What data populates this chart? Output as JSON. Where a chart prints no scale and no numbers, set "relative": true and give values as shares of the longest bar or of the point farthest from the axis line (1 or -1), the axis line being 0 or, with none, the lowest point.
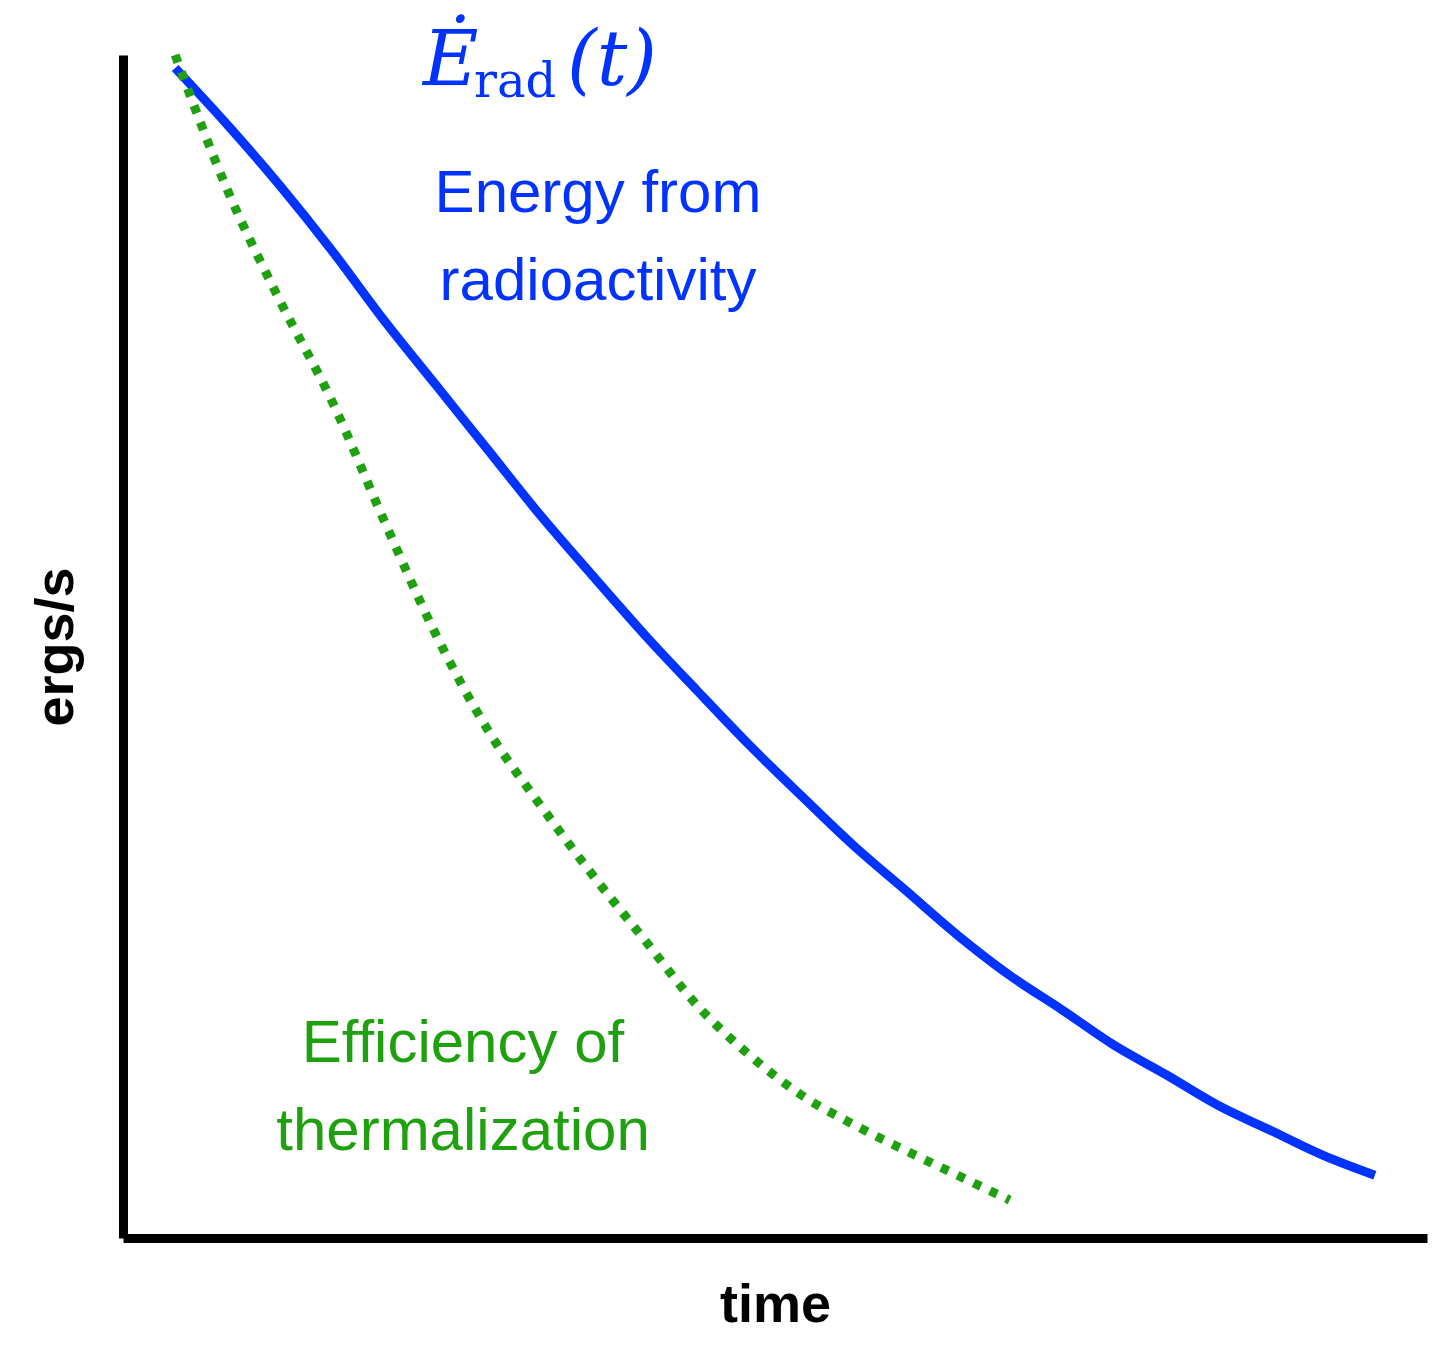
{
  "chart_data": {
    "type": "line",
    "relative": true,
    "xlabel": "time",
    "ylabel": "ergs/s",
    "legend": false,
    "grid": false,
    "categories": [
      null,
      null,
      null,
      null,
      null,
      null,
      null,
      null,
      null,
      null,
      null,
      null,
      null,
      null,
      null,
      null,
      null,
      null,
      null,
      null,
      null,
      null,
      null,
      null
    ],
    "annotations": [
      "Ė$_{rad}$(t)"
    ],
    "series": [
      {
        "name": "Energy from radioactivity",
        "color": "#0033ff",
        "line_style": "solid",
        "values": [
          0.989,
          0.941,
          0.89,
          0.835,
          0.776,
          0.721,
          0.666,
          0.611,
          0.56,
          0.51,
          0.463,
          0.417,
          0.374,
          0.332,
          0.294,
          0.256,
          0.222,
          0.193,
          0.163,
          0.138,
          0.112,
          0.091,
          0.07,
          0.053
        ]
      },
      {
        "name": "Efficiency of thermalization",
        "color": "#1fa10f",
        "line_style": "dotted",
        "values": [
          1.0,
          0.886,
          0.793,
          0.708,
          0.607,
          0.51,
          0.429,
          0.366,
          0.307,
          0.252,
          0.197,
          0.155,
          0.121,
          0.096,
          0.074,
          0.053,
          0.032,
          null,
          null,
          null,
          null,
          null,
          null,
          null
        ]
      }
    ]
  }
}
